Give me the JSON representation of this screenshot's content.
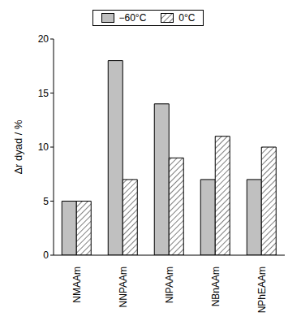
{
  "chart_data": {
    "type": "bar",
    "categories": [
      "NMAAm",
      "NNPAAm",
      "NIPAAm",
      "NBnAAm",
      "NPhEAAm"
    ],
    "series": [
      {
        "name": "−60°C",
        "color": "#c0c0c0",
        "values": [
          5,
          18,
          14,
          7,
          7
        ]
      },
      {
        "name": "0°C",
        "color": "#000000",
        "values": [
          5,
          7,
          9,
          11,
          10
        ]
      }
    ],
    "y_label": "Δr dyad / %",
    "ylim": [
      0,
      20
    ],
    "yticks": [
      0,
      5,
      10,
      15,
      20
    ],
    "legend": "top",
    "grid": false
  }
}
